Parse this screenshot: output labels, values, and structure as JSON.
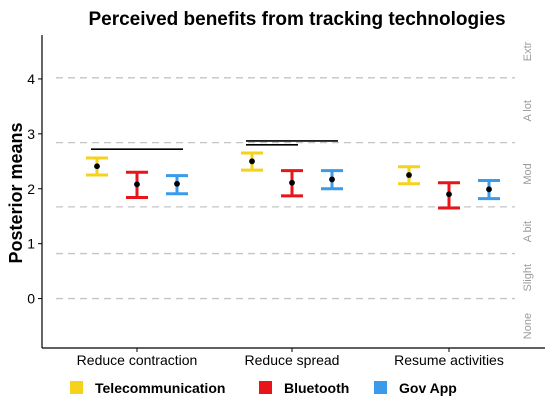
{
  "chart_data": {
    "type": "errorbar",
    "title": "Perceived benefits from tracking technologies",
    "ylabel": "Posterior means",
    "xlabel": "",
    "ylim": [
      -0.9,
      4.8
    ],
    "yticks": [
      0,
      1,
      2,
      3,
      4
    ],
    "categories": [
      "Reduce contraction",
      "Reduce spread",
      "Resume activities"
    ],
    "series": [
      {
        "name": "Telecommunication",
        "color": "#F5D21C",
        "mean": [
          2.41,
          2.5,
          2.25
        ],
        "lower": [
          2.25,
          2.34,
          2.09
        ],
        "upper": [
          2.56,
          2.65,
          2.4
        ]
      },
      {
        "name": "Bluetooth",
        "color": "#E8141A",
        "mean": [
          2.08,
          2.11,
          1.9
        ],
        "lower": [
          1.84,
          1.87,
          1.65
        ],
        "upper": [
          2.3,
          2.33,
          2.11
        ]
      },
      {
        "name": "Gov App",
        "color": "#3A9BEA",
        "mean": [
          2.09,
          2.17,
          1.99
        ],
        "lower": [
          1.91,
          2.0,
          1.82
        ],
        "upper": [
          2.24,
          2.33,
          2.15
        ]
      }
    ],
    "reference_lines": [
      0,
      0.82,
      1.67,
      2.84,
      4.02
    ],
    "right_axis_labels": [
      {
        "label": "None",
        "y": -0.5
      },
      {
        "label": "Slight",
        "y": 0.38
      },
      {
        "label": "A bit",
        "y": 1.22
      },
      {
        "label": "Mod",
        "y": 2.27
      },
      {
        "label": "A lot",
        "y": 3.42
      },
      {
        "label": "Extr",
        "y": 4.5
      }
    ],
    "significance_bars": [
      {
        "category": 0,
        "from_series": 0,
        "to_series": 2,
        "y": 2.72
      },
      {
        "category": 1,
        "from_series": 0,
        "to_series": 1,
        "y": 2.8
      },
      {
        "category": 1,
        "from_series": 0,
        "to_series": 2,
        "y": 2.87
      }
    ],
    "legend_position": "bottom",
    "grid": false
  }
}
